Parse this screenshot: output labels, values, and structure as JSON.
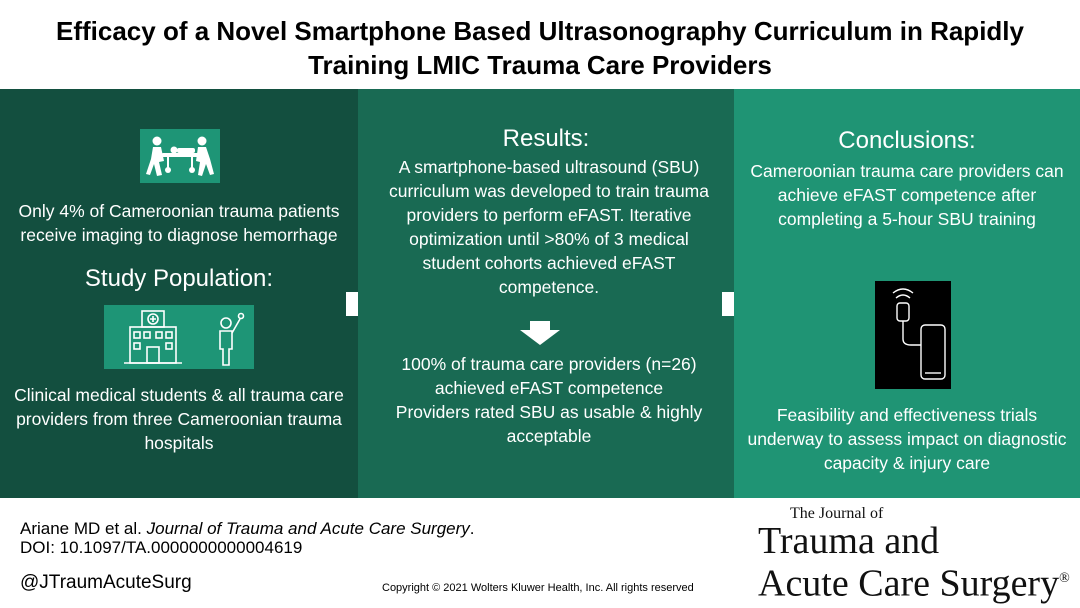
{
  "title": {
    "line1": "Efficacy of a Novel Smartphone Based Ultrasonography Curriculum in Rapidly",
    "line2": "Training LMIC Trauma Care Providers"
  },
  "left_panel": {
    "icon": "stretcher-transport-icon",
    "intro_text": "Only 4% of Cameroonian trauma patients receive imaging to diagnose hemorrhage",
    "heading": "Study Population:",
    "icons": [
      "hospital-icon",
      "student-raising-hand-icon"
    ],
    "population_text": "Clinical medical students & all trauma care providers from three Cameroonian trauma hospitals"
  },
  "middle_panel": {
    "heading": "Results:",
    "text1": "A smartphone-based ultrasound (SBU) curriculum was developed to train trauma providers to perform eFAST. Iterative optimization until >80% of 3 medical student cohorts achieved eFAST competence.",
    "text2": "100% of trauma care providers (n=26) achieved eFAST competence",
    "text3": "Providers rated SBU as usable & highly acceptable"
  },
  "right_panel": {
    "heading": "Conclusions:",
    "text1": "Cameroonian trauma care providers can achieve eFAST competence after completing a 5-hour SBU training",
    "icon": "smartphone-ultrasound-probe-icon",
    "text2": "Feasibility and effectiveness trials underway to assess impact on diagnostic capacity & injury care"
  },
  "footer": {
    "authors": "Ariane MD et al.",
    "journal_italic": "Journal of Trauma and Acute Care Surgery",
    "journal_period": ".",
    "doi": "DOI: 10.1097/TA.0000000000004619",
    "handle": "@JTraumAcuteSurg",
    "copyright": "Copyright © 2021  Wolters Kluwer Health, Inc. All rights reserved"
  },
  "journal_logo": {
    "small": "The Journal of",
    "line1": "Trauma and",
    "line2": "Acute Care Surgery",
    "mark": "®"
  },
  "colors": {
    "panel_left": "#134f3f",
    "panel_middle": "#196a53",
    "panel_right": "#1f9474",
    "icon_box": "#1e9576"
  }
}
